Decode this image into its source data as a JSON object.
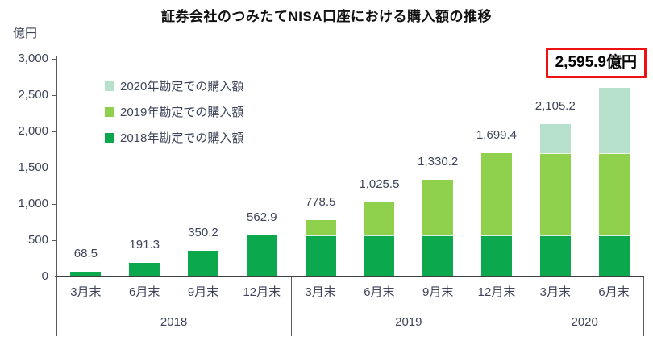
{
  "chart_data": {
    "type": "bar",
    "stacked": true,
    "title": "証券会社のつみたてNISA口座における購入額の推移",
    "y_axis_unit_label": "億円",
    "ylim": [
      0,
      3000
    ],
    "ytick_step": 500,
    "yticks": [
      "0",
      "500",
      "1,000",
      "1,500",
      "2,000",
      "2,500",
      "3,000"
    ],
    "grid": false,
    "legend_position": "upper-left-inside",
    "groups": [
      {
        "year": "2018",
        "months": [
          "3月末",
          "6月末",
          "9月末",
          "12月末"
        ]
      },
      {
        "year": "2019",
        "months": [
          "3月末",
          "6月末",
          "9月末",
          "12月末"
        ]
      },
      {
        "year": "2020",
        "months": [
          "3月末",
          "6月末"
        ]
      }
    ],
    "series": [
      {
        "name": "2018年勘定での購入額",
        "color": "#0ca84e",
        "values": [
          68.5,
          191.3,
          350.2,
          562.9,
          562.9,
          562.9,
          562.9,
          562.9,
          562.9,
          562.9
        ]
      },
      {
        "name": "2019年勘定での購入額",
        "color": "#8fd04d",
        "values": [
          0,
          0,
          0,
          0,
          215.6,
          462.6,
          767.3,
          1136.5,
          1136.5,
          1136.5
        ]
      },
      {
        "name": "2020年勘定での購入額",
        "color": "#b7e1cd",
        "values": [
          0,
          0,
          0,
          0,
          0,
          0,
          0,
          0,
          405.8,
          896.5
        ]
      }
    ],
    "totals": [
      68.5,
      191.3,
      350.2,
      562.9,
      778.5,
      1025.5,
      1330.2,
      1699.4,
      2105.2,
      2595.9
    ],
    "total_labels": [
      "68.5",
      "191.3",
      "350.2",
      "562.9",
      "778.5",
      "1,025.5",
      "1,330.2",
      "1,699.4",
      "2,105.2",
      "2,595.9"
    ],
    "highlight": {
      "label": "2,595.9億円",
      "border_color": "#ee1111",
      "text_color": "#000000"
    },
    "legend": [
      {
        "label": "2020年勘定での購入額",
        "color": "#b7e1cd"
      },
      {
        "label": "2019年勘定での購入額",
        "color": "#8fd04d"
      },
      {
        "label": "2018年勘定での購入額",
        "color": "#0ca84e"
      }
    ],
    "colors": {
      "axis_line": "#595959",
      "baseline": "#404040",
      "text": "#3f4458",
      "title_text": "#111111",
      "divider": "rgba(255,255,255,0.85)"
    }
  }
}
